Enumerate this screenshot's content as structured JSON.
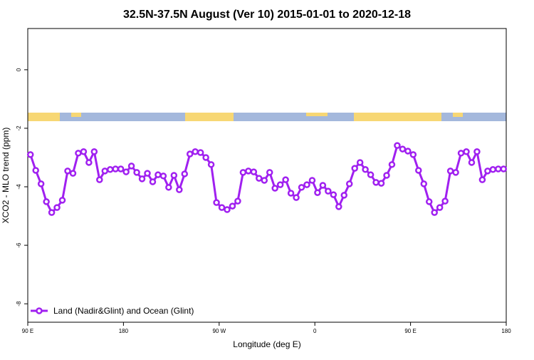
{
  "chart_data": {
    "type": "line",
    "title": "32.5N-37.5N August (Ver 10)   2015-01-01 to 2020-12-18",
    "x_label": "Longitude (deg E)",
    "y_label": "XCO2 - MLO trend (ppm)",
    "x": [
      92.5,
      97.5,
      102.5,
      107.5,
      112.5,
      117.5,
      122.5,
      127.5,
      132.5,
      137.5,
      142.5,
      147.5,
      152.5,
      157.5,
      162.5,
      167.5,
      172.5,
      177.5,
      182.5,
      187.5,
      192.5,
      197.5,
      202.5,
      207.5,
      212.5,
      217.5,
      222.5,
      227.5,
      232.5,
      237.5,
      242.5,
      247.5,
      252.5,
      257.5,
      262.5,
      267.5,
      272.5,
      277.5,
      282.5,
      287.5,
      292.5,
      297.5,
      302.5,
      307.5,
      312.5,
      317.5,
      322.5,
      327.5,
      332.5,
      337.5,
      342.5,
      347.5,
      352.5,
      357.5,
      362.5,
      367.5,
      372.5,
      377.5,
      382.5,
      387.5,
      392.5,
      397.5,
      402.5,
      407.5,
      412.5,
      417.5,
      422.5,
      427.5,
      432.5,
      437.5,
      442.5,
      447.5,
      452.5,
      457.5,
      462.5,
      467.5,
      472.5,
      477.5,
      482.5,
      487.5,
      492.5,
      497.5,
      502.5,
      507.5,
      512.5,
      517.5,
      522.5,
      527.5,
      532.5,
      537.5
    ],
    "series": [
      {
        "name": "Land (Nadir&Glint) and Ocean (Glint)",
        "color": "#a020f0",
        "values": [
          -2.9,
          -3.44,
          -3.9,
          -4.51,
          -4.88,
          -4.71,
          -4.46,
          -3.46,
          -3.54,
          -2.85,
          -2.8,
          -3.17,
          -2.8,
          -3.76,
          -3.46,
          -3.41,
          -3.39,
          -3.39,
          -3.49,
          -3.29,
          -3.51,
          -3.73,
          -3.54,
          -3.83,
          -3.59,
          -3.63,
          -4.02,
          -3.61,
          -4.1,
          -3.56,
          -2.88,
          -2.8,
          -2.83,
          -3.0,
          -3.24,
          -4.54,
          -4.71,
          -4.78,
          -4.66,
          -4.49,
          -3.51,
          -3.46,
          -3.49,
          -3.71,
          -3.78,
          -3.51,
          -4.05,
          -3.93,
          -3.76,
          -4.22,
          -4.37,
          -4.02,
          -3.93,
          -3.78,
          -4.2,
          -3.95,
          -4.15,
          -4.27,
          -4.68,
          -4.29,
          -3.9,
          -3.37,
          -3.17,
          -3.41,
          -3.59,
          -3.85,
          -3.88,
          -3.61,
          -3.24,
          -2.59,
          -2.71,
          -2.78,
          -2.9,
          -3.44,
          -3.9,
          -4.51,
          -4.88,
          -4.71,
          -4.49,
          -3.46,
          -3.51,
          -2.85,
          -2.8,
          -3.17,
          -2.8,
          -3.76,
          -3.46,
          -3.41,
          -3.39,
          -3.39
        ]
      }
    ],
    "xlim": [
      90,
      540
    ],
    "xticks": [
      {
        "value": 90,
        "label": "90 E"
      },
      {
        "value": 180,
        "label": "180"
      },
      {
        "value": 270,
        "label": "90 W"
      },
      {
        "value": 360,
        "label": "0"
      },
      {
        "value": 450,
        "label": "90 E"
      },
      {
        "value": 540,
        "label": "180"
      }
    ],
    "ylim": [
      -8.63,
      1.41
    ],
    "yticks": [
      0,
      -2,
      -4,
      -6,
      -8
    ],
    "legend": "bottom-left"
  }
}
